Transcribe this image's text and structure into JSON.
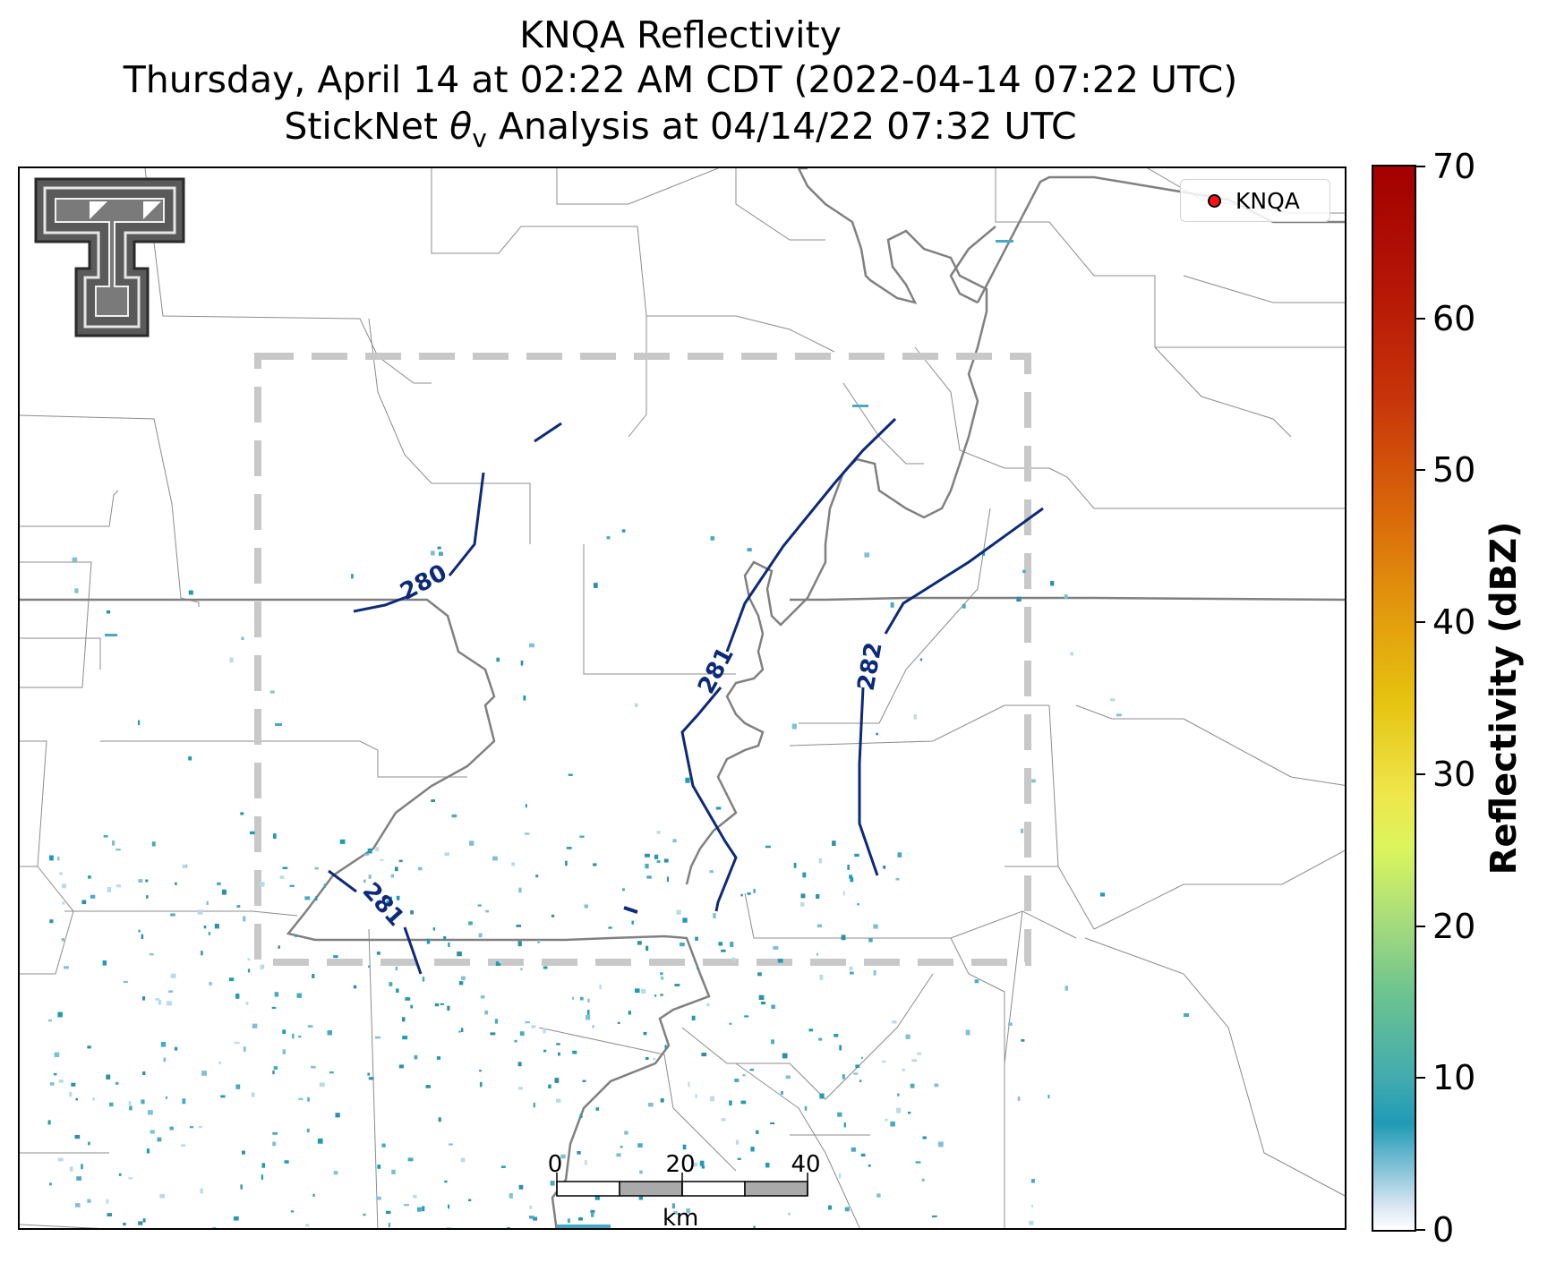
{
  "title": {
    "line1": "KNQA Reflectivity",
    "line2": "Thursday, April 14 at 02:22 AM CDT (2022-04-14 07:22 UTC)",
    "line3_prefix": "StickNet ",
    "line3_symbol": "θ",
    "line3_subscript": "v",
    "line3_suffix": " Analysis at 04/14/22 07:32 UTC"
  },
  "legend": {
    "label": "KNQA",
    "marker_color": "#ff1010"
  },
  "colorbar": {
    "title": "Reflectivity (dBZ)",
    "ticks": [
      "0",
      "10",
      "20",
      "30",
      "40",
      "50",
      "60",
      "70"
    ],
    "range": [
      0,
      70
    ]
  },
  "contours": {
    "color": "#0c2a78",
    "labels": [
      "280",
      "281",
      "282",
      "281"
    ]
  },
  "scalebar": {
    "ticks": [
      "0",
      "20",
      "40"
    ],
    "unit": "km"
  },
  "colors": {
    "analysis_box": "#c8c8c8",
    "county_lines": "#8c8c8c",
    "rivers": "#808080"
  },
  "logo": {
    "name": "texas-tech-double-t-logo"
  }
}
